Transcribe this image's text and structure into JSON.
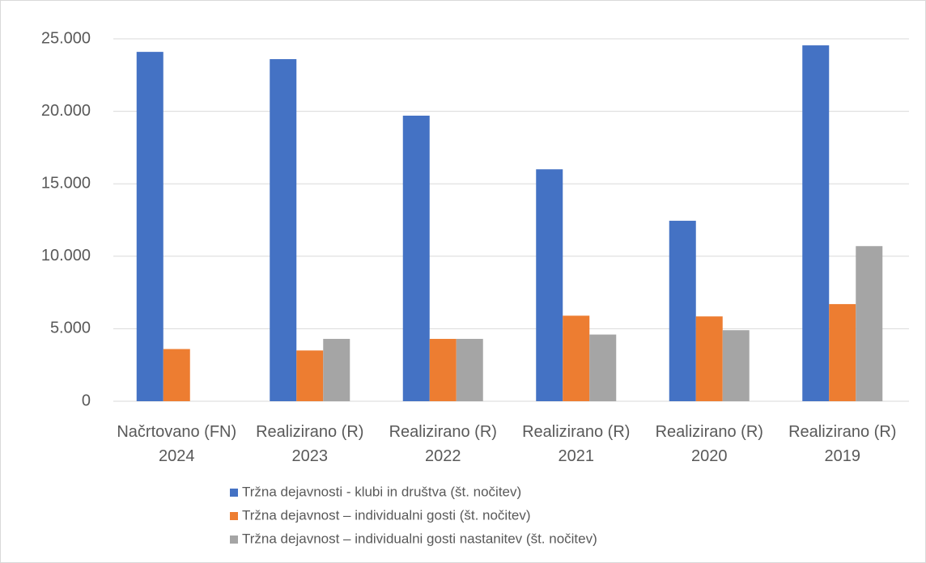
{
  "chart_data": {
    "type": "bar",
    "categories": [
      "Načrtovano (FN) 2024",
      "Realizirano (R) 2023",
      "Realizirano (R) 2022",
      "Realizirano (R) 2021",
      "Realizirano (R) 2020",
      "Realizirano (R) 2019"
    ],
    "series": [
      {
        "name": "Tržna dejavnosti - klubi in društva (št. nočitev)",
        "color": "#4472c4",
        "values": [
          24100,
          23600,
          19700,
          16000,
          12450,
          24550
        ]
      },
      {
        "name": "Tržna dejavnost – individualni gosti (št. nočitev)",
        "color": "#ed7d31",
        "values": [
          3600,
          3500,
          4300,
          5900,
          5850,
          6700
        ]
      },
      {
        "name": "Tržna dejavnost – individualni gosti nastanitev (št. nočitev)",
        "color": "#a5a5a5",
        "values": [
          null,
          4300,
          4300,
          4600,
          4900,
          10700
        ]
      }
    ],
    "ylim": [
      0,
      25000
    ],
    "yticks": [
      0,
      {
        "value": 5000,
        "label": "5.000"
      },
      {
        "value": 10000,
        "label": "10.000"
      },
      {
        "value": 15000,
        "label": "15.000"
      },
      {
        "value": 20000,
        "label": "20.000"
      },
      {
        "value": 25000,
        "label": "25.000"
      }
    ],
    "grid": true,
    "legend": "bottom"
  }
}
